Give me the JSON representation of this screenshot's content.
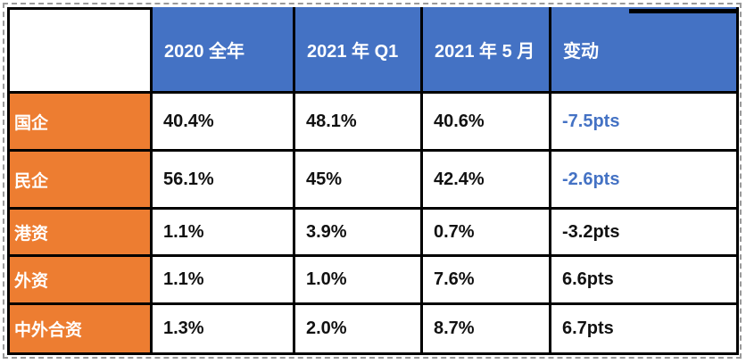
{
  "canvas": {
    "background": "#FFFFFF"
  },
  "selection": {
    "style": "dashed",
    "border_color": "#9A9A9A"
  },
  "table": {
    "grid_border_color": "#000000",
    "header": {
      "bg": "#4472C4",
      "text_color": "#FFFFFF",
      "corner_label": "",
      "cols": [
        "2020 全年",
        "2021 年 Q1",
        "2021 年 5 月",
        "变动"
      ]
    },
    "row_header": {
      "bg": "#ED7D31",
      "text_color": "#FFFFFF"
    },
    "body": {
      "bg": "#FFFFFF",
      "text_color": "#111111",
      "highlight_color": "#4472C4"
    },
    "rows": [
      {
        "label": "国企",
        "v2020": "40.4%",
        "v2021q1": "48.1%",
        "v2021may": "40.6%",
        "change": "-7.5pts",
        "change_highlighted": true
      },
      {
        "label": "民企",
        "v2020": "56.1%",
        "v2021q1": "45%",
        "v2021may": "42.4%",
        "change": "-2.6pts",
        "change_highlighted": true
      },
      {
        "label": "港资",
        "v2020": "1.1%",
        "v2021q1": "3.9%",
        "v2021may": "0.7%",
        "change": "-3.2pts",
        "change_highlighted": false
      },
      {
        "label": "外资",
        "v2020": "1.1%",
        "v2021q1": "1.0%",
        "v2021may": "7.6%",
        "change": "6.6pts",
        "change_highlighted": false
      },
      {
        "label": "中外合资",
        "v2020": "1.3%",
        "v2021q1": "2.0%",
        "v2021may": "8.7%",
        "change": "6.7pts",
        "change_highlighted": false
      }
    ]
  },
  "chart_data": {
    "type": "table",
    "title": "",
    "columns": [
      "",
      "2020 全年",
      "2021 年 Q1",
      "2021 年 5 月",
      "变动"
    ],
    "rows": [
      [
        "国企",
        "40.4%",
        "48.1%",
        "40.6%",
        "-7.5pts"
      ],
      [
        "民企",
        "56.1%",
        "45%",
        "42.4%",
        "-2.6pts"
      ],
      [
        "港资",
        "1.1%",
        "3.9%",
        "0.7%",
        "-3.2pts"
      ],
      [
        "外资",
        "1.1%",
        "1.0%",
        "7.6%",
        "6.6pts"
      ],
      [
        "中外合资",
        "1.3%",
        "2.0%",
        "8.7%",
        "6.7pts"
      ]
    ],
    "highlighted_cells": [
      {
        "row": "国企",
        "column": "变动",
        "value": "-7.5pts",
        "color": "#4472C4"
      },
      {
        "row": "民企",
        "column": "变动",
        "value": "-2.6pts",
        "color": "#4472C4"
      }
    ],
    "layout_hints": {
      "header_fill": "#4472C4",
      "row_label_fill": "#ED7D31",
      "grid": "thick black borders",
      "outer": "gray dashed selection outline"
    }
  }
}
